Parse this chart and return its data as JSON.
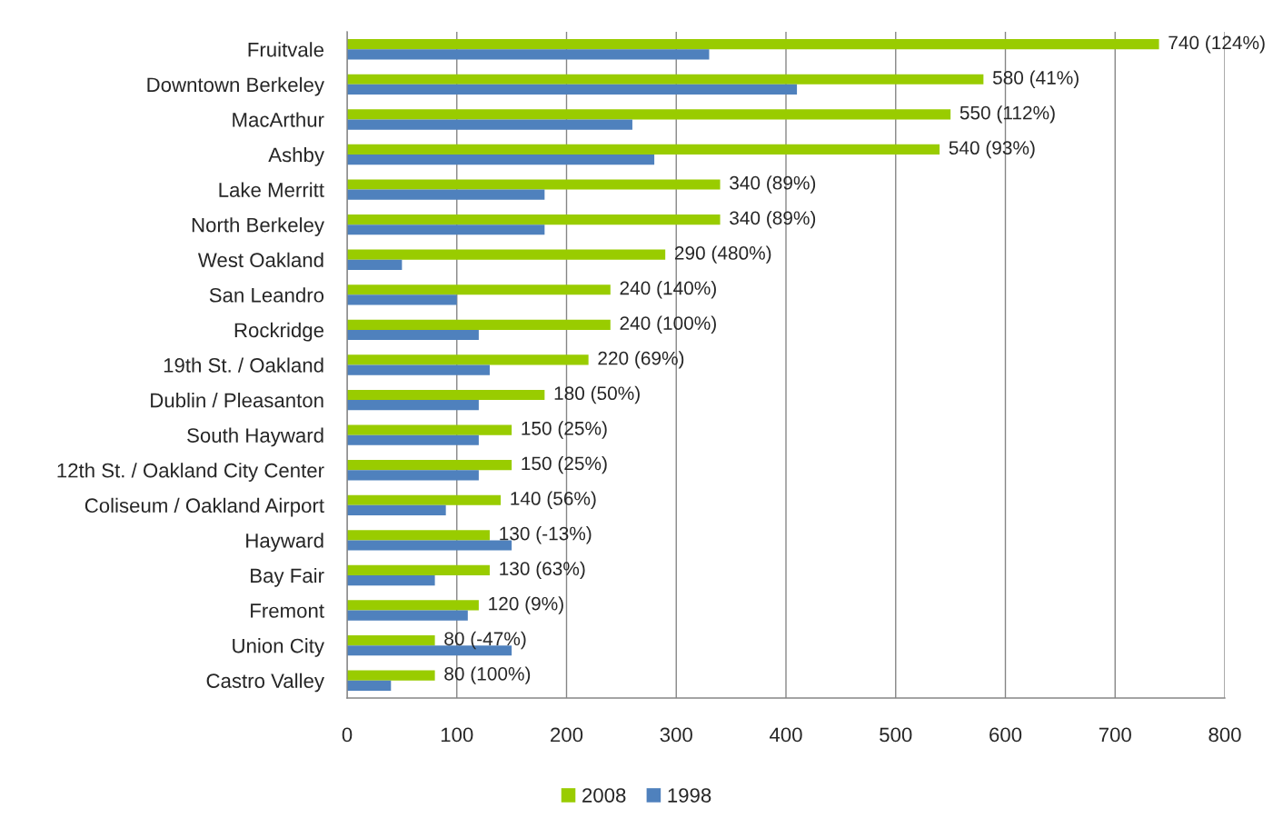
{
  "chart_data": {
    "type": "bar",
    "orientation": "horizontal",
    "categories": [
      "Fruitvale",
      "Downtown Berkeley",
      "MacArthur",
      "Ashby",
      "Lake Merritt",
      "North Berkeley",
      "West Oakland",
      "San Leandro",
      "Rockridge",
      "19th St. / Oakland",
      "Dublin / Pleasanton",
      "South Hayward",
      "12th St. / Oakland City Center",
      "Coliseum / Oakland Airport",
      "Hayward",
      "Bay Fair",
      "Fremont",
      "Union City",
      "Castro Valley"
    ],
    "series": [
      {
        "name": "2008",
        "color": "#99cc00",
        "values": [
          740,
          580,
          550,
          540,
          340,
          340,
          290,
          240,
          240,
          220,
          180,
          150,
          150,
          140,
          130,
          130,
          120,
          80,
          80
        ],
        "value_labels": [
          "740 (124%)",
          "580 (41%)",
          "550 (112%)",
          "540 (93%)",
          "340 (89%)",
          "340 (89%)",
          "290 (480%)",
          "240 (140%)",
          "240 (100%)",
          "220 (69%)",
          "180 (50%)",
          "150 (25%)",
          "150 (25%)",
          "140 (56%)",
          "130 (-13%)",
          "130 (63%)",
          "120 (9%)",
          "80 (-47%)",
          "80 (100%)"
        ]
      },
      {
        "name": "1998",
        "color": "#4f81bd",
        "values": [
          330,
          410,
          260,
          280,
          180,
          180,
          50,
          100,
          120,
          130,
          120,
          120,
          120,
          90,
          150,
          80,
          110,
          150,
          40
        ]
      }
    ],
    "xlim": [
      0,
      800
    ],
    "xticks": [
      0,
      100,
      200,
      300,
      400,
      500,
      600,
      700,
      800
    ],
    "grid": "x",
    "legend": "bottom"
  }
}
